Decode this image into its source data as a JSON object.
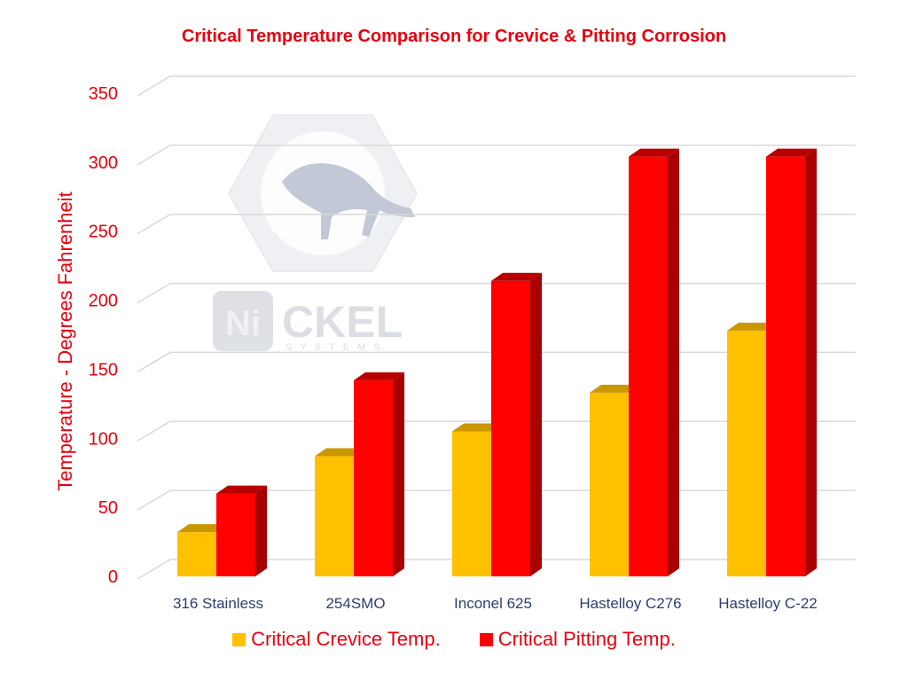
{
  "chart_data": {
    "type": "bar",
    "title": "Critical Temperature Comparison for Crevice & Pitting Corrosion",
    "ylabel": "Temperature - Degrees Fahrenheit",
    "xlabel": "",
    "ylim": [
      0,
      350
    ],
    "yticks": [
      0,
      50,
      100,
      150,
      200,
      250,
      300,
      350
    ],
    "grid": true,
    "legend_position": "bottom",
    "categories": [
      "316 Stainless",
      "254SMO",
      "Inconel 625",
      "Hastelloy C276",
      "Hastelloy C-22"
    ],
    "series": [
      {
        "name": "Critical Crevice Temp.",
        "color": "#ffc000",
        "values": [
          32,
          87,
          105,
          133,
          178
        ]
      },
      {
        "name": "Critical Pitting Temp.",
        "color": "#ff0000",
        "values": [
          60,
          142,
          214,
          304,
          304
        ]
      }
    ]
  },
  "watermark": {
    "logo_mark": "Ni",
    "logo_text": "CKEL",
    "logo_subtext": "SYSTEMS",
    "icon": "bison-hex-nut-icon"
  }
}
